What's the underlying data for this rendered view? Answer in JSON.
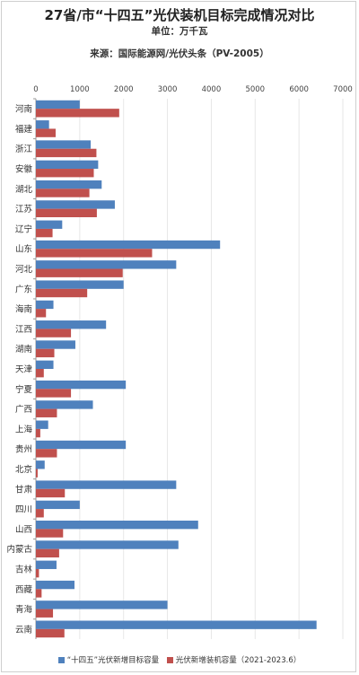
{
  "title": "27省/市“十四五”光伏装机目标完成情况对比",
  "unit": "单位：万千瓦",
  "source": "来源：国际能源网/光伏头条（PV-2005）",
  "colors": {
    "target": "#4f81bd",
    "installed": "#c0504d",
    "grid": "#e6e6e6",
    "axis": "#999999"
  },
  "chart_data": {
    "type": "bar",
    "orientation": "horizontal",
    "categories": [
      "河南",
      "福建",
      "浙江",
      "安徽",
      "湖北",
      "江苏",
      "辽宁",
      "山东",
      "河北",
      "广东",
      "海南",
      "江西",
      "湖南",
      "天津",
      "宁夏",
      "广西",
      "上海",
      "贵州",
      "北京",
      "甘肃",
      "四川",
      "山西",
      "内蒙古",
      "吉林",
      "西藏",
      "青海",
      "云南"
    ],
    "series": [
      {
        "name": "“十四五”光伏新增目标容量",
        "values": [
          1000,
          300,
          1250,
          1420,
          1500,
          1800,
          600,
          4200,
          3200,
          2000,
          400,
          1600,
          900,
          400,
          2050,
          1300,
          280,
          2050,
          200,
          3200,
          1000,
          3700,
          3250,
          470,
          880,
          3000,
          6400
        ]
      },
      {
        "name": "光伏新增装机容量（2021-2023.6）",
        "values": [
          1900,
          450,
          1380,
          1320,
          1220,
          1390,
          380,
          2650,
          1980,
          1170,
          230,
          800,
          420,
          180,
          800,
          480,
          100,
          480,
          40,
          660,
          180,
          620,
          530,
          70,
          130,
          390,
          650
        ]
      }
    ],
    "xlim": [
      0,
      7000
    ],
    "xticks": [
      0,
      1000,
      2000,
      3000,
      4000,
      5000,
      6000,
      7000
    ],
    "grid": true,
    "legend_position": "bottom"
  }
}
